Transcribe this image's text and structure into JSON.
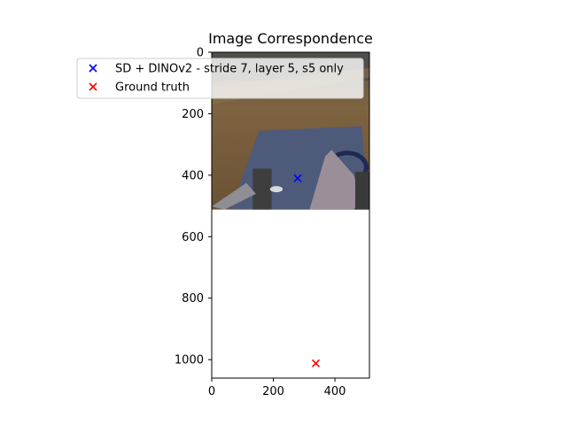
{
  "chart_data": {
    "type": "scatter",
    "title": "Image Correspondence",
    "xlabel": "",
    "ylabel": "",
    "xlim": [
      0,
      512
    ],
    "ylim": [
      1060,
      0
    ],
    "y_inverted": true,
    "x_ticks": [
      0,
      200,
      400
    ],
    "y_ticks": [
      0,
      200,
      400,
      600,
      800,
      1000
    ],
    "background_image": {
      "description_icon": "photo-scene-icon",
      "x_extent": [
        0,
        512
      ],
      "y_extent": [
        0,
        512
      ]
    },
    "series": [
      {
        "name": "SD + DINOv2 - stride 7, layer 5, s5 only",
        "marker": "x",
        "color": "#0000ff",
        "points": [
          [
            279,
            410
          ]
        ]
      },
      {
        "name": "Ground truth",
        "marker": "x",
        "color": "#ff0000",
        "points": [
          [
            338,
            1012
          ]
        ]
      }
    ],
    "legend": {
      "placement": "top-left"
    },
    "grid": false
  }
}
